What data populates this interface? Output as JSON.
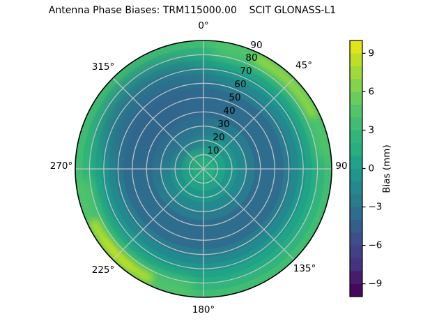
{
  "title": "Antenna Phase Biases: TRM115000.00    SCIT GLONASS-L1",
  "chart_data": {
    "type": "heatmap",
    "projection": "polar",
    "title": "Antenna Phase Biases: TRM115000.00    SCIT GLONASS-L1",
    "angle_ticks": [
      "0°",
      "45°",
      "90",
      "135°",
      "180°",
      "225°",
      "270°",
      "315°"
    ],
    "radial_ticks": [
      "10",
      "20",
      "30",
      "40",
      "50",
      "60",
      "70",
      "80",
      "90"
    ],
    "radial_range": [
      0,
      90
    ],
    "radial_label_azimuth_deg": 22.5,
    "grid": true,
    "grid_color": "#cacaca",
    "colorbar": {
      "label": "Bias (mm)",
      "vmin": -10,
      "vmax": 10,
      "tick_values": [
        9,
        6,
        3,
        0,
        -3,
        -6,
        -9
      ],
      "tick_labels": [
        "9",
        "6",
        "3",
        "0",
        "−3",
        "−6",
        "−9"
      ],
      "colormap": "viridis",
      "band_step_mm": 1,
      "band_colors": [
        "#46085c",
        "#481b6d",
        "#46327e",
        "#424086",
        "#3c4f8a",
        "#355e8d",
        "#2e6d8e",
        "#297b8e",
        "#23898e",
        "#1f968b",
        "#20a386",
        "#27ae81",
        "#31b57b",
        "#40bd72",
        "#52c569",
        "#69cd5b",
        "#83d34b",
        "#9fda3a",
        "#bddf26",
        "#dfe318"
      ]
    },
    "field": {
      "description": "Phase bias (mm) over azimuth / zenith angle: teal-green centre (~+1.5), dark blue annulus (~-3) around zenith angles 40-60 (darkest toward azimuth 315), rising back to green (~+4) at the horizon rim, brightest yellow-green rim near azimuth 45 (~+7) and azimuth 225 (~+9).",
      "rim_glow_color": "#52c569",
      "radial_bands": [
        {
          "r0": 0.0,
          "r1": 0.09,
          "bias_mm": 2,
          "color": "#27ae81"
        },
        {
          "r0": 0.09,
          "r1": 0.17,
          "bias_mm": 1,
          "color": "#20a386"
        },
        {
          "r0": 0.17,
          "r1": 0.26,
          "bias_mm": 0,
          "color": "#1f968b"
        },
        {
          "r0": 0.26,
          "r1": 0.33,
          "bias_mm": -1,
          "color": "#23898e"
        },
        {
          "r0": 0.33,
          "r1": 0.4,
          "bias_mm": -2,
          "color": "#297b8e"
        },
        {
          "r0": 0.4,
          "r1": 0.625,
          "bias_mm": -3,
          "color": "#2e6d8e"
        },
        {
          "r0": 0.625,
          "r1": 0.685,
          "bias_mm": -2,
          "color": "#297b8e"
        },
        {
          "r0": 0.685,
          "r1": 0.74,
          "bias_mm": -1,
          "color": "#23898e"
        },
        {
          "r0": 0.74,
          "r1": 0.795,
          "bias_mm": 0,
          "color": "#1f968b"
        },
        {
          "r0": 0.795,
          "r1": 0.845,
          "bias_mm": 1,
          "color": "#20a386"
        },
        {
          "r0": 0.845,
          "r1": 0.895,
          "bias_mm": 2,
          "color": "#25ac82"
        },
        {
          "r0": 0.895,
          "r1": 0.945,
          "bias_mm": 3,
          "color": "#31b57b"
        },
        {
          "r0": 0.945,
          "r1": 1.0,
          "bias_mm": 4,
          "color": "#40bd72"
        }
      ],
      "anomalies": [
        {
          "type": "bright-rim",
          "azimuth_deg": 45,
          "peak_mm": 7,
          "color": "#9fda3a"
        },
        {
          "type": "bright-rim",
          "azimuth_deg": 225,
          "peak_mm": 9,
          "color": "#b5de2b"
        },
        {
          "type": "dark-patch",
          "azimuth_deg": 315,
          "zenith_range": [
            40,
            65
          ],
          "min_mm": -4,
          "color": "#31688e"
        },
        {
          "type": "bright-core",
          "near": "zenith, slightly west",
          "peak_mm": 2,
          "color": "#2db47b"
        }
      ]
    }
  }
}
